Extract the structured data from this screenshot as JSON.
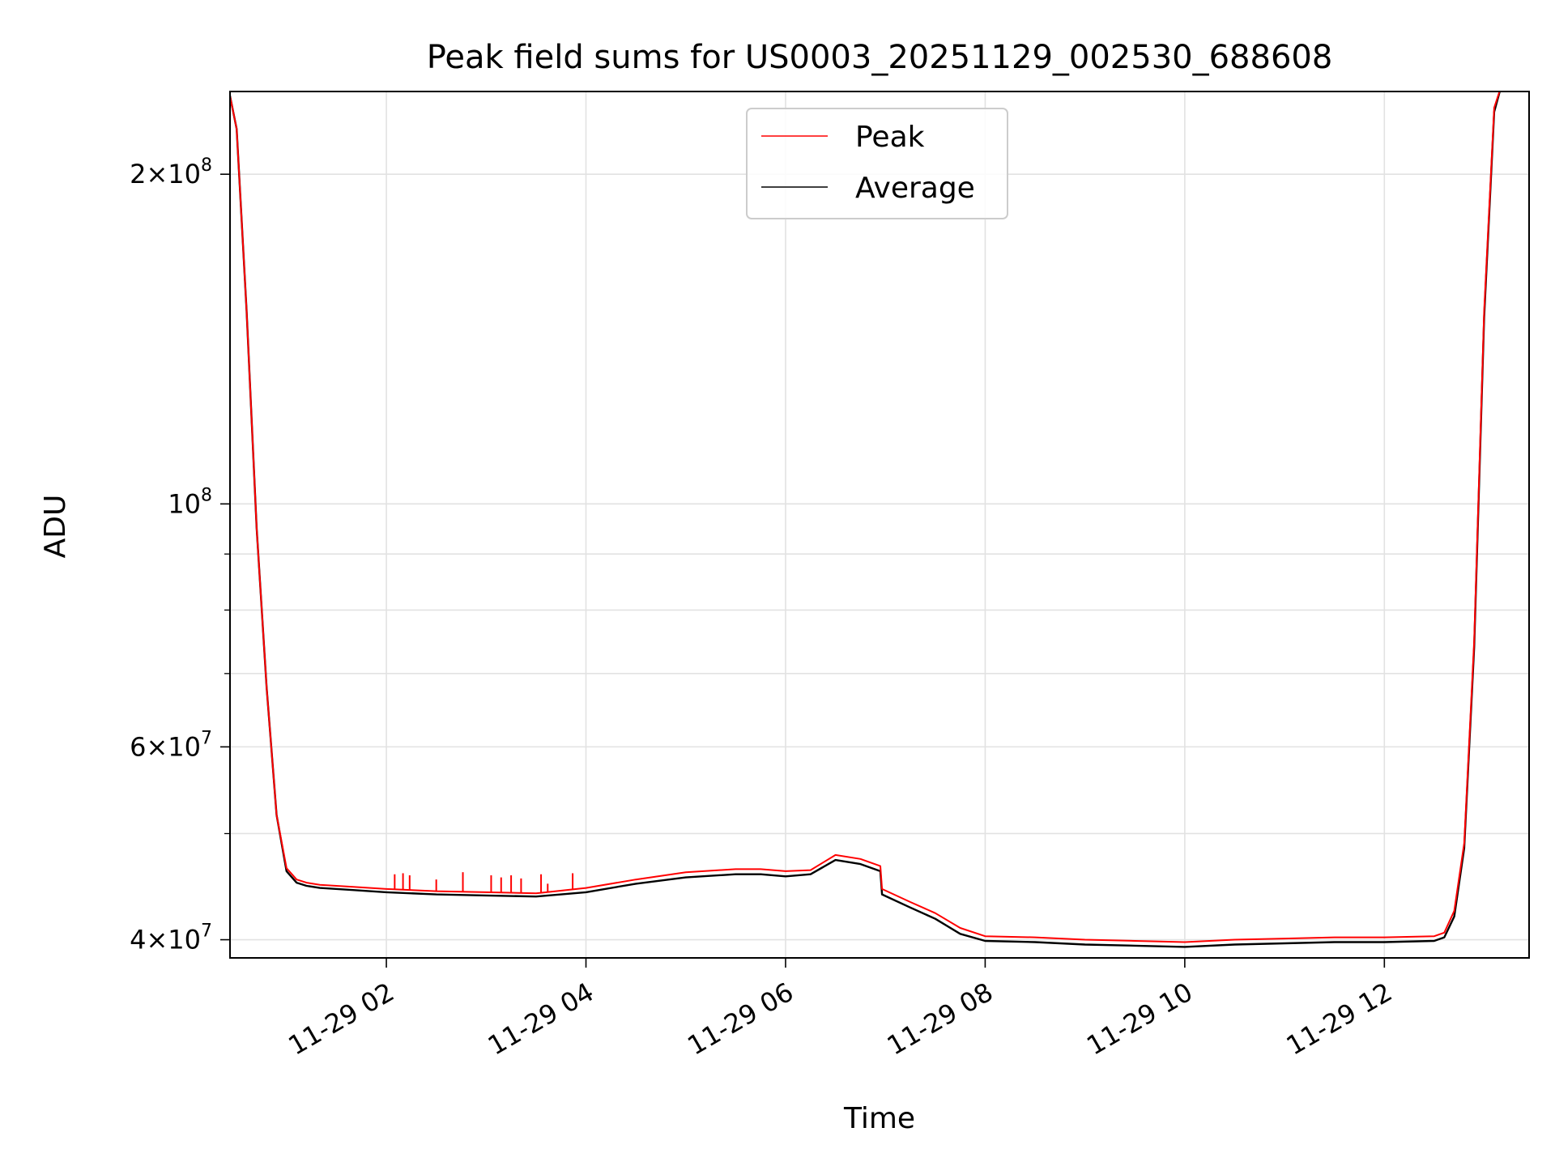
{
  "chart_data": {
    "type": "line",
    "title": "Peak field sums for US0003_20251129_002530_688608",
    "xlabel": "Time",
    "ylabel": "ADU",
    "yscale": "log",
    "xlim": [
      "2025-11-29 00:26",
      "2025-11-29 13:27"
    ],
    "ylim": [
      38500000,
      238000000
    ],
    "grid": true,
    "legend_position": "top-center",
    "x_ticks": [
      {
        "t": "2025-11-29 02:00",
        "label": "11-29 02"
      },
      {
        "t": "2025-11-29 04:00",
        "label": "11-29 04"
      },
      {
        "t": "2025-11-29 06:00",
        "label": "11-29 06"
      },
      {
        "t": "2025-11-29 08:00",
        "label": "11-29 08"
      },
      {
        "t": "2025-11-29 10:00",
        "label": "11-29 10"
      },
      {
        "t": "2025-11-29 12:00",
        "label": "11-29 12"
      }
    ],
    "y_ticks": [
      {
        "v": 40000000,
        "base": "4×10",
        "exp": "7"
      },
      {
        "v": 60000000,
        "base": "6×10",
        "exp": "7"
      },
      {
        "v": 100000000,
        "base": "10",
        "exp": "8"
      },
      {
        "v": 200000000,
        "base": "2×10",
        "exp": "8"
      }
    ],
    "y_minor_ticks": [
      50000000,
      70000000,
      80000000,
      90000000
    ],
    "series": [
      {
        "name": "Peak",
        "color": "#ff0000",
        "x": [
          "2025-11-29 00:25",
          "2025-11-29 00:30",
          "2025-11-29 00:36",
          "2025-11-29 00:42",
          "2025-11-29 00:48",
          "2025-11-29 00:54",
          "2025-11-29 01:00",
          "2025-11-29 01:06",
          "2025-11-29 01:12",
          "2025-11-29 01:20",
          "2025-11-29 01:40",
          "2025-11-29 02:00",
          "2025-11-29 02:30",
          "2025-11-29 03:00",
          "2025-11-29 03:30",
          "2025-11-29 04:00",
          "2025-11-29 04:30",
          "2025-11-29 05:00",
          "2025-11-29 05:30",
          "2025-11-29 05:45",
          "2025-11-29 06:00",
          "2025-11-29 06:15",
          "2025-11-29 06:30",
          "2025-11-29 06:45",
          "2025-11-29 06:57",
          "2025-11-29 06:58",
          "2025-11-29 07:15",
          "2025-11-29 07:30",
          "2025-11-29 07:45",
          "2025-11-29 08:00",
          "2025-11-29 08:30",
          "2025-11-29 09:00",
          "2025-11-29 09:30",
          "2025-11-29 10:00",
          "2025-11-29 10:30",
          "2025-11-29 11:00",
          "2025-11-29 11:30",
          "2025-11-29 12:00",
          "2025-11-29 12:30",
          "2025-11-29 12:36",
          "2025-11-29 12:42",
          "2025-11-29 12:48",
          "2025-11-29 12:54",
          "2025-11-29 13:00",
          "2025-11-29 13:06",
          "2025-11-29 13:10"
        ],
        "values": [
          240000000,
          220000000,
          150000000,
          95000000,
          68000000,
          52000000,
          46500000,
          45400000,
          45100000,
          44900000,
          44700000,
          44500000,
          44300000,
          44200000,
          44100000,
          44600000,
          45400000,
          46100000,
          46400000,
          46400000,
          46200000,
          46300000,
          47800000,
          47400000,
          46700000,
          44500000,
          43300000,
          42300000,
          41000000,
          40300000,
          40200000,
          40000000,
          39900000,
          39800000,
          40000000,
          40100000,
          40200000,
          40200000,
          40300000,
          40600000,
          42500000,
          49000000,
          75000000,
          150000000,
          230000000,
          240000000
        ]
      },
      {
        "name": "Average",
        "color": "#000000",
        "x": [
          "2025-11-29 00:25",
          "2025-11-29 00:30",
          "2025-11-29 00:36",
          "2025-11-29 00:42",
          "2025-11-29 00:48",
          "2025-11-29 00:54",
          "2025-11-29 01:00",
          "2025-11-29 01:06",
          "2025-11-29 01:12",
          "2025-11-29 01:20",
          "2025-11-29 01:40",
          "2025-11-29 02:00",
          "2025-11-29 02:30",
          "2025-11-29 03:00",
          "2025-11-29 03:30",
          "2025-11-29 04:00",
          "2025-11-29 04:30",
          "2025-11-29 05:00",
          "2025-11-29 05:30",
          "2025-11-29 05:45",
          "2025-11-29 06:00",
          "2025-11-29 06:15",
          "2025-11-29 06:30",
          "2025-11-29 06:45",
          "2025-11-29 06:57",
          "2025-11-29 06:58",
          "2025-11-29 07:15",
          "2025-11-29 07:30",
          "2025-11-29 07:45",
          "2025-11-29 08:00",
          "2025-11-29 08:30",
          "2025-11-29 09:00",
          "2025-11-29 09:30",
          "2025-11-29 10:00",
          "2025-11-29 10:30",
          "2025-11-29 11:00",
          "2025-11-29 11:30",
          "2025-11-29 12:00",
          "2025-11-29 12:30",
          "2025-11-29 12:36",
          "2025-11-29 12:42",
          "2025-11-29 12:48",
          "2025-11-29 12:54",
          "2025-11-29 13:00",
          "2025-11-29 13:06",
          "2025-11-29 13:10"
        ],
        "values": [
          240000000,
          220000000,
          150000000,
          95000000,
          68000000,
          52000000,
          46200000,
          45100000,
          44800000,
          44600000,
          44400000,
          44200000,
          44000000,
          43900000,
          43800000,
          44200000,
          45000000,
          45600000,
          45900000,
          45900000,
          45700000,
          45900000,
          47300000,
          46900000,
          46200000,
          44000000,
          42800000,
          41800000,
          40500000,
          39900000,
          39800000,
          39600000,
          39500000,
          39400000,
          39600000,
          39700000,
          39800000,
          39800000,
          39900000,
          40200000,
          42000000,
          48500000,
          74000000,
          148000000,
          228000000,
          240000000
        ]
      }
    ],
    "peak_spikes": [
      {
        "t": "2025-11-29 02:05",
        "v": 45900000
      },
      {
        "t": "2025-11-29 02:10",
        "v": 46000000
      },
      {
        "t": "2025-11-29 02:14",
        "v": 45800000
      },
      {
        "t": "2025-11-29 02:30",
        "v": 45400000
      },
      {
        "t": "2025-11-29 02:46",
        "v": 46100000
      },
      {
        "t": "2025-11-29 03:03",
        "v": 45800000
      },
      {
        "t": "2025-11-29 03:09",
        "v": 45600000
      },
      {
        "t": "2025-11-29 03:15",
        "v": 45800000
      },
      {
        "t": "2025-11-29 03:21",
        "v": 45500000
      },
      {
        "t": "2025-11-29 03:33",
        "v": 45900000
      },
      {
        "t": "2025-11-29 03:37",
        "v": 45000000
      },
      {
        "t": "2025-11-29 03:52",
        "v": 46000000
      }
    ]
  }
}
